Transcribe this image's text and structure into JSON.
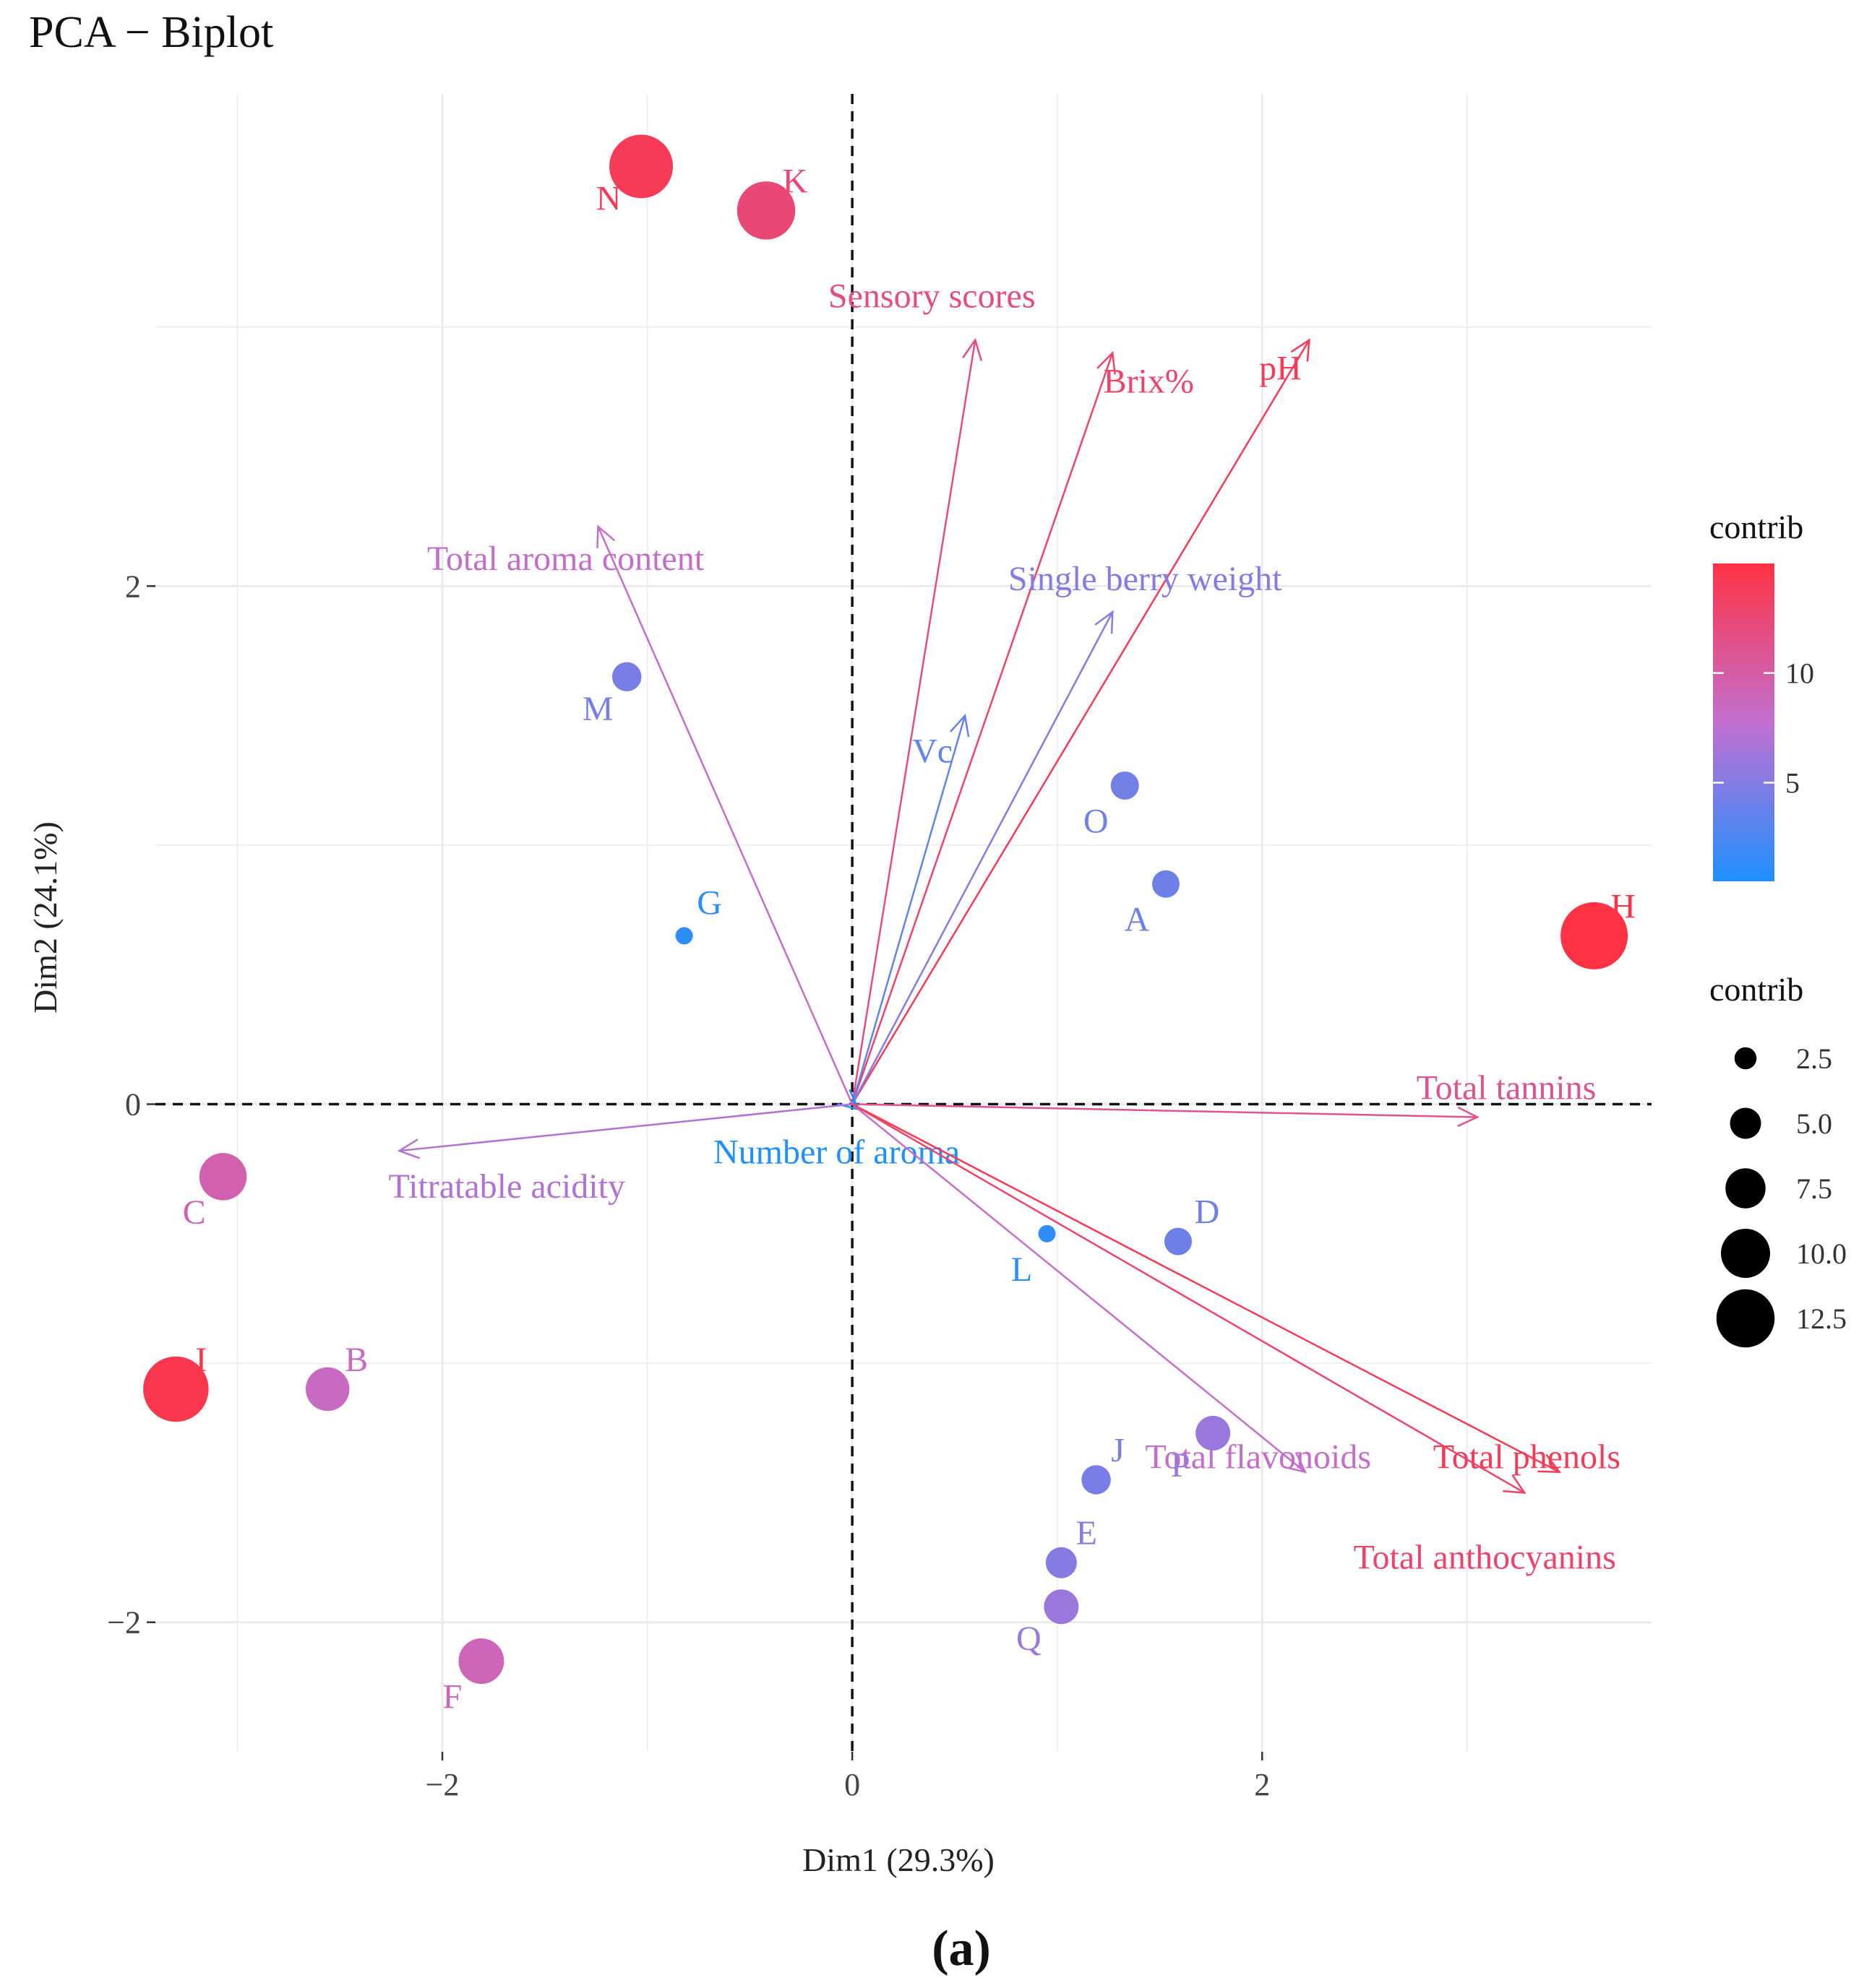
{
  "chart_data": {
    "type": "scatter",
    "title": "PCA − Biplot",
    "xlabel": "Dim1 (29.3%)",
    "ylabel": "Dim2 (24.1%)",
    "caption": "(a)",
    "xlim": [
      -3.4,
      3.9
    ],
    "ylim": [
      -2.5,
      3.9
    ],
    "x_ticks": [
      -2,
      0,
      2
    ],
    "y_ticks": [
      -2,
      0,
      2
    ],
    "x_tick_labels": [
      "−2",
      "0",
      "2"
    ],
    "y_tick_labels": [
      "−2",
      "0",
      "2"
    ],
    "grid": true,
    "reference_lines": {
      "x": 0,
      "y": 0,
      "style": "dashed"
    },
    "color_scale": {
      "low": "#1e90ff",
      "mid": "#c26fd0",
      "high": "#ff3344",
      "min": 0.5,
      "max": 15
    },
    "points": [
      {
        "label": "N",
        "x": -1.03,
        "y": 3.62,
        "contrib": 14.0
      },
      {
        "label": "K",
        "x": -0.42,
        "y": 3.45,
        "contrib": 12.5
      },
      {
        "label": "M",
        "x": -1.1,
        "y": 1.65,
        "contrib": 4.5
      },
      {
        "label": "G",
        "x": -0.82,
        "y": 0.65,
        "contrib": 1.2
      },
      {
        "label": "O",
        "x": 1.33,
        "y": 1.23,
        "contrib": 4.2
      },
      {
        "label": "A",
        "x": 1.53,
        "y": 0.85,
        "contrib": 4.0
      },
      {
        "label": "H",
        "x": 3.62,
        "y": 0.65,
        "contrib": 15.0
      },
      {
        "label": "C",
        "x": -3.07,
        "y": -0.28,
        "contrib": 9.5
      },
      {
        "label": "L",
        "x": 0.95,
        "y": -0.5,
        "contrib": 1.2
      },
      {
        "label": "D",
        "x": 1.59,
        "y": -0.53,
        "contrib": 4.0
      },
      {
        "label": "I",
        "x": -3.3,
        "y": -1.1,
        "contrib": 14.5
      },
      {
        "label": "B",
        "x": -2.56,
        "y": -1.1,
        "contrib": 8.5
      },
      {
        "label": "P",
        "x": 1.76,
        "y": -1.27,
        "contrib": 6.0
      },
      {
        "label": "J",
        "x": 1.19,
        "y": -1.45,
        "contrib": 4.5
      },
      {
        "label": "E",
        "x": 1.02,
        "y": -1.77,
        "contrib": 5.0
      },
      {
        "label": "Q",
        "x": 1.02,
        "y": -1.94,
        "contrib": 6.0
      },
      {
        "label": "F",
        "x": -1.81,
        "y": -2.15,
        "contrib": 9.0
      }
    ],
    "variables": [
      {
        "label": "Sensory scores",
        "x": 0.6,
        "y": 2.95,
        "contrib": 12.0
      },
      {
        "label": "Brix%",
        "x": 1.27,
        "y": 2.9,
        "contrib": 13.0
      },
      {
        "label": "pH",
        "x": 2.23,
        "y": 2.95,
        "contrib": 14.0
      },
      {
        "label": "Total aroma content",
        "x": -1.24,
        "y": 2.23,
        "contrib": 8.0
      },
      {
        "label": "Single berry weight",
        "x": 1.27,
        "y": 1.9,
        "contrib": 5.0
      },
      {
        "label": "Vc",
        "x": 0.55,
        "y": 1.5,
        "contrib": 3.5
      },
      {
        "label": "Total tannins",
        "x": 3.05,
        "y": -0.05,
        "contrib": 11.0
      },
      {
        "label": "Number of aroma",
        "x": 0.03,
        "y": -0.02,
        "contrib": 0.5
      },
      {
        "label": "Titratable acidity",
        "x": -2.21,
        "y": -0.18,
        "contrib": 7.0
      },
      {
        "label": "Total flavonoids",
        "x": 2.21,
        "y": -1.42,
        "contrib": 8.0
      },
      {
        "label": "Total phenols",
        "x": 3.45,
        "y": -1.42,
        "contrib": 14.0
      },
      {
        "label": "Total anthocyanins",
        "x": 3.28,
        "y": -1.5,
        "contrib": 13.0
      }
    ],
    "legend": {
      "placement": "right",
      "color_title": "contrib",
      "color_ticks": [
        5,
        10
      ],
      "color_tick_labels": [
        "5",
        "10"
      ],
      "size_title": "contrib",
      "size_values": [
        2.5,
        5.0,
        7.5,
        10.0,
        12.5
      ],
      "size_labels": [
        "2.5",
        "5.0",
        "7.5",
        "10.0",
        "12.5"
      ]
    }
  }
}
